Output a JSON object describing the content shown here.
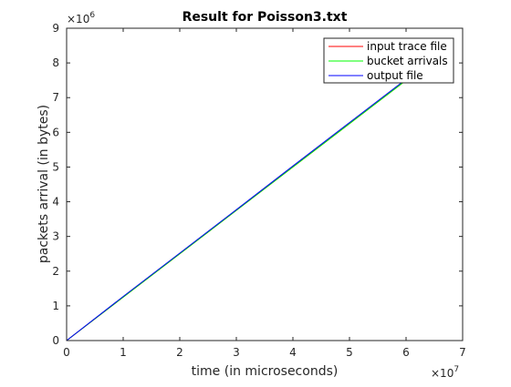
{
  "chart_data": {
    "type": "line",
    "title": "Result for Poisson3.txt",
    "xlabel": "time (in microseconds)",
    "ylabel": "packets arrival (in bytes)",
    "xlim": [
      0,
      70000000
    ],
    "ylim": [
      0,
      9000000
    ],
    "x_ticks": [
      0,
      1,
      2,
      3,
      4,
      5,
      6,
      7
    ],
    "y_ticks": [
      0,
      1,
      2,
      3,
      4,
      5,
      6,
      7,
      8,
      9
    ],
    "x_exponent": {
      "base": "×10",
      "power": "7"
    },
    "y_exponent": {
      "base": "×10",
      "power": "6"
    },
    "grid": false,
    "legend_position": "top-right",
    "series": [
      {
        "name": "input trace file",
        "color": "#ff0000",
        "x": [
          0,
          60000000
        ],
        "y": [
          0,
          7500000
        ]
      },
      {
        "name": "bucket arrivals",
        "color": "#00ff00",
        "x": [
          0,
          60000000
        ],
        "y": [
          0,
          7500000
        ]
      },
      {
        "name": "output file",
        "color": "#0000ff",
        "x": [
          0,
          10000000,
          20000000,
          30000000,
          40000000,
          50000000,
          60000000
        ],
        "y": [
          0,
          1270000,
          2520000,
          3770000,
          5030000,
          6280000,
          7530000
        ]
      }
    ]
  }
}
